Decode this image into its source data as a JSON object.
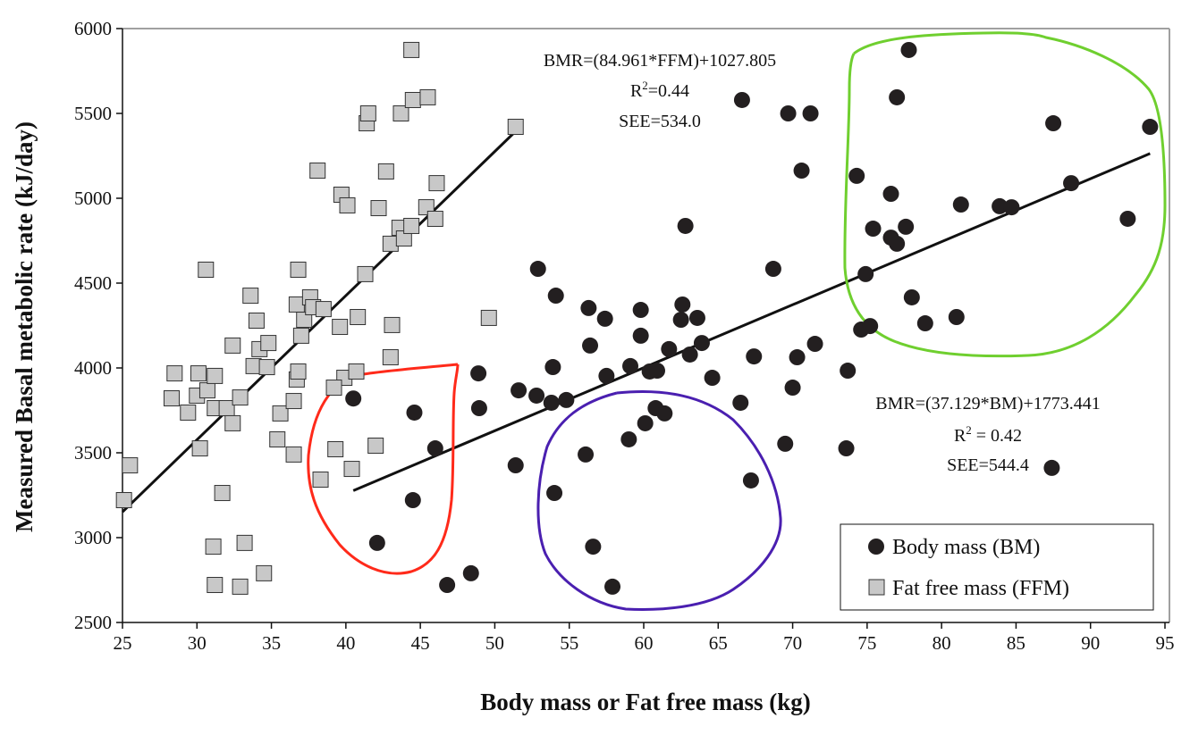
{
  "chart_data": {
    "type": "scatter",
    "xlabel": "Body mass or Fat free mass (kg)",
    "ylabel": "Measured Basal metabolic rate (kJ/day)",
    "xlim": [
      25,
      95
    ],
    "ylim": [
      2500,
      6000
    ],
    "xticks": [
      "25",
      "30",
      "35",
      "40",
      "45",
      "50",
      "55",
      "60",
      "65",
      "70",
      "75",
      "80",
      "85",
      "90",
      "95"
    ],
    "yticks": [
      "2500",
      "3000",
      "3500",
      "4000",
      "4500",
      "5000",
      "5500",
      "6000"
    ],
    "grid": false,
    "legend_position": "bottom-right",
    "series": [
      {
        "name": "Body mass (BM)",
        "marker": "circle",
        "color": "#231f20",
        "points": [
          [
            40.5,
            3820
          ],
          [
            44.6,
            3737
          ],
          [
            46.0,
            3526
          ],
          [
            44.5,
            3221
          ],
          [
            42.1,
            2969
          ],
          [
            46.8,
            2721
          ],
          [
            48.4,
            2790
          ],
          [
            48.9,
            3968
          ],
          [
            48.95,
            3763
          ],
          [
            51.4,
            3426
          ],
          [
            51.6,
            3868
          ],
          [
            52.8,
            3837
          ],
          [
            52.9,
            4584
          ],
          [
            54.1,
            4426
          ],
          [
            53.9,
            4005
          ],
          [
            53.8,
            3795
          ],
          [
            54.0,
            3263
          ],
          [
            54.8,
            3811
          ],
          [
            56.1,
            3490
          ],
          [
            56.3,
            4353
          ],
          [
            56.4,
            4132
          ],
          [
            56.6,
            2947
          ],
          [
            57.4,
            4290
          ],
          [
            57.5,
            3953
          ],
          [
            57.9,
            2711
          ],
          [
            59.0,
            3579
          ],
          [
            59.1,
            4011
          ],
          [
            59.8,
            4342
          ],
          [
            59.8,
            4190
          ],
          [
            60.1,
            3674
          ],
          [
            60.4,
            3979
          ],
          [
            60.8,
            3763
          ],
          [
            60.9,
            3984
          ],
          [
            61.4,
            3732
          ],
          [
            61.7,
            4111
          ],
          [
            62.6,
            4374
          ],
          [
            62.5,
            4284
          ],
          [
            62.8,
            4837
          ],
          [
            63.1,
            4079
          ],
          [
            63.6,
            4295
          ],
          [
            63.9,
            4147
          ],
          [
            64.6,
            3942
          ],
          [
            66.6,
            5579
          ],
          [
            66.5,
            3795
          ],
          [
            67.2,
            3337
          ],
          [
            67.4,
            4068
          ],
          [
            68.7,
            4584
          ],
          [
            69.5,
            3553
          ],
          [
            69.7,
            5500
          ],
          [
            70.0,
            3884
          ],
          [
            70.3,
            4063
          ],
          [
            70.6,
            5163
          ],
          [
            71.2,
            5500
          ],
          [
            71.5,
            4142
          ],
          [
            73.7,
            3984
          ],
          [
            73.6,
            3526
          ],
          [
            74.3,
            5132
          ],
          [
            74.6,
            4226
          ],
          [
            74.9,
            4553
          ],
          [
            75.2,
            4247
          ],
          [
            75.4,
            4821
          ],
          [
            76.6,
            5026
          ],
          [
            76.6,
            4768
          ],
          [
            77.0,
            4732
          ],
          [
            77.0,
            5595
          ],
          [
            77.6,
            4832
          ],
          [
            77.8,
            5874
          ],
          [
            78.0,
            4416
          ],
          [
            78.9,
            4263
          ],
          [
            81.0,
            4300
          ],
          [
            81.3,
            4963
          ],
          [
            83.9,
            4953
          ],
          [
            84.7,
            4947
          ],
          [
            87.4,
            3411
          ],
          [
            87.5,
            5442
          ],
          [
            88.7,
            5089
          ],
          [
            92.5,
            4879
          ],
          [
            94.0,
            5421
          ]
        ]
      },
      {
        "name": "Fat free mass (FFM)",
        "marker": "square",
        "color": "#c8c8c8",
        "points": [
          [
            25.5,
            3426
          ],
          [
            25.1,
            3221
          ],
          [
            28.5,
            3968
          ],
          [
            28.3,
            3821
          ],
          [
            29.4,
            3737
          ],
          [
            30.1,
            3968
          ],
          [
            30.2,
            3526
          ],
          [
            30.0,
            3837
          ],
          [
            30.7,
            3868
          ],
          [
            30.6,
            4579
          ],
          [
            31.2,
            3953
          ],
          [
            31.2,
            3763
          ],
          [
            31.7,
            3263
          ],
          [
            32.0,
            3763
          ],
          [
            32.4,
            3674
          ],
          [
            32.4,
            4132
          ],
          [
            32.9,
            3826
          ],
          [
            33.6,
            4426
          ],
          [
            34.0,
            4279
          ],
          [
            34.2,
            4111
          ],
          [
            33.8,
            4011
          ],
          [
            34.8,
            4147
          ],
          [
            34.7,
            4005
          ],
          [
            35.4,
            3579
          ],
          [
            35.6,
            3732
          ],
          [
            36.5,
            3805
          ],
          [
            36.5,
            3490
          ],
          [
            36.8,
            4579
          ],
          [
            36.7,
            4374
          ],
          [
            36.7,
            3932
          ],
          [
            36.8,
            3979
          ],
          [
            37.0,
            4190
          ],
          [
            37.2,
            4284
          ],
          [
            37.6,
            4416
          ],
          [
            37.8,
            4358
          ],
          [
            38.5,
            4347
          ],
          [
            38.1,
            5163
          ],
          [
            39.6,
            4242
          ],
          [
            39.7,
            5021
          ],
          [
            39.9,
            3942
          ],
          [
            40.1,
            4958
          ],
          [
            39.2,
            3884
          ],
          [
            39.3,
            3521
          ],
          [
            38.3,
            3342
          ],
          [
            40.4,
            3405
          ],
          [
            40.7,
            3979
          ],
          [
            40.8,
            4300
          ],
          [
            41.3,
            4553
          ],
          [
            41.4,
            5442
          ],
          [
            41.5,
            5500
          ],
          [
            42.0,
            3542
          ],
          [
            42.2,
            4942
          ],
          [
            42.7,
            5158
          ],
          [
            43.0,
            4732
          ],
          [
            43.1,
            4253
          ],
          [
            43.0,
            4063
          ],
          [
            43.6,
            4826
          ],
          [
            43.7,
            5500
          ],
          [
            43.9,
            4763
          ],
          [
            44.4,
            5874
          ],
          [
            44.4,
            4837
          ],
          [
            44.5,
            5579
          ],
          [
            45.4,
            4947
          ],
          [
            45.5,
            5595
          ],
          [
            46.0,
            4879
          ],
          [
            46.1,
            5089
          ],
          [
            49.6,
            4295
          ],
          [
            51.4,
            5421
          ],
          [
            31.1,
            2947
          ],
          [
            31.2,
            2721
          ],
          [
            32.9,
            2711
          ],
          [
            34.5,
            2790
          ],
          [
            33.2,
            2969
          ]
        ]
      }
    ],
    "trendlines": [
      {
        "series": "Fat free mass (FFM)",
        "slope": 84.961,
        "intercept": 1027.805,
        "x_range": [
          25,
          51.4
        ],
        "equation": "BMR=(84.961*FFM)+1027.805",
        "r2_label": "R",
        "r2_value": "=0.44",
        "see": "SEE=534.0"
      },
      {
        "series": "Body mass (BM)",
        "slope": 37.129,
        "intercept": 1773.441,
        "x_range": [
          40.5,
          94
        ],
        "equation": "BMR=(37.129*BM)+1773.441",
        "r2_label": "R",
        "r2_value": " = 0.42",
        "see": "SEE=544.4"
      }
    ],
    "annotation_colors": {
      "red": "#ff2a1a",
      "purple": "#4a1fb0",
      "green": "#6fcf2f"
    }
  }
}
